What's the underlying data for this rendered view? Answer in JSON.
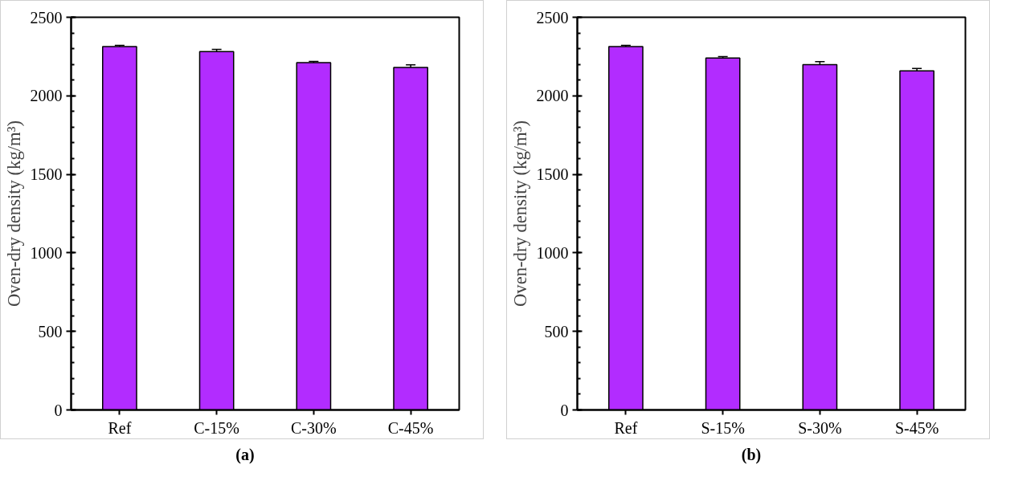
{
  "chart_data": [
    {
      "type": "bar",
      "categories": [
        "Ref",
        "C-15%",
        "C-30%",
        "C-45%"
      ],
      "values": [
        2313,
        2281,
        2211,
        2180
      ],
      "errors": [
        8,
        15,
        8,
        17
      ],
      "color": "#b22cff",
      "ylabel": "Oven-dry density (kg/m³)",
      "ylim": [
        0,
        2500
      ],
      "yticks": [
        0,
        500,
        1000,
        1500,
        2000,
        2500
      ],
      "annotations": [
        "(a)"
      ]
    },
    {
      "type": "bar",
      "categories": [
        "Ref",
        "S-15%",
        "S-30%",
        "S-45%"
      ],
      "values": [
        2313,
        2240,
        2198,
        2159
      ],
      "errors": [
        8,
        10,
        20,
        15
      ],
      "color": "#b22cff",
      "ylabel": "Oven-dry density (kg/m³)",
      "ylim": [
        0,
        2500
      ],
      "yticks": [
        0,
        500,
        1000,
        1500,
        2000,
        2500
      ],
      "annotations": [
        "(b)"
      ]
    }
  ]
}
